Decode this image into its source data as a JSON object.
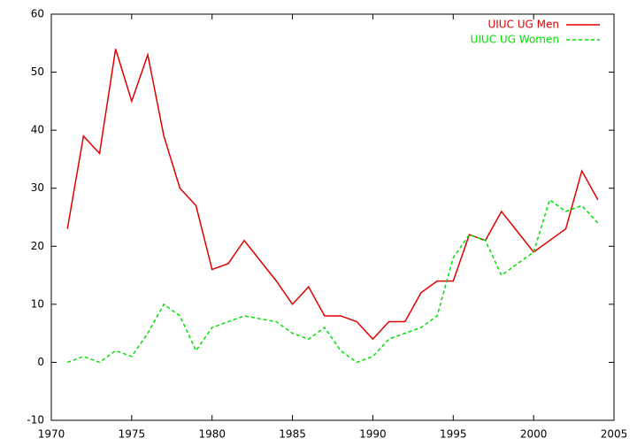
{
  "chart_data": {
    "type": "line",
    "series": [
      {
        "name": "UIUC UG Men",
        "color": "#e00000",
        "dash": "solid",
        "x": [
          1971,
          1972,
          1973,
          1974,
          1975,
          1976,
          1977,
          1978,
          1979,
          1980,
          1981,
          1982,
          1984,
          1985,
          1986,
          1987,
          1988,
          1989,
          1990,
          1991,
          1992,
          1993,
          1994,
          1995,
          1996,
          1997,
          1998,
          2000,
          2002,
          2003,
          2004
        ],
        "values": [
          23,
          39,
          36,
          54,
          45,
          53,
          39,
          30,
          27,
          16,
          17,
          21,
          14,
          10,
          13,
          8,
          8,
          7,
          4,
          7,
          7,
          12,
          14,
          14,
          22,
          21,
          26,
          19,
          23,
          33,
          28
        ]
      },
      {
        "name": "UIUC UG Women",
        "color": "#00e000",
        "dash": "dashed",
        "x": [
          1971,
          1972,
          1973,
          1974,
          1975,
          1976,
          1977,
          1978,
          1979,
          1980,
          1981,
          1982,
          1984,
          1985,
          1986,
          1987,
          1988,
          1989,
          1990,
          1991,
          1992,
          1993,
          1994,
          1995,
          1996,
          1997,
          1998,
          2000,
          2001,
          2002,
          2003,
          2004
        ],
        "values": [
          0,
          1,
          0,
          2,
          1,
          5,
          10,
          8,
          2,
          6,
          7,
          8,
          7,
          5,
          4,
          6,
          2,
          0,
          1,
          4,
          5,
          6,
          8,
          18,
          22,
          21,
          15,
          19,
          28,
          26,
          27,
          24
        ]
      }
    ],
    "xlim": [
      1970,
      2005
    ],
    "xticks": [
      1970,
      1975,
      1980,
      1985,
      1990,
      1995,
      2000,
      2005
    ],
    "ylim": [
      -10,
      60
    ],
    "yticks": [
      -10,
      0,
      10,
      20,
      30,
      40,
      50,
      60
    ],
    "grid": false,
    "legend": "top-right"
  }
}
